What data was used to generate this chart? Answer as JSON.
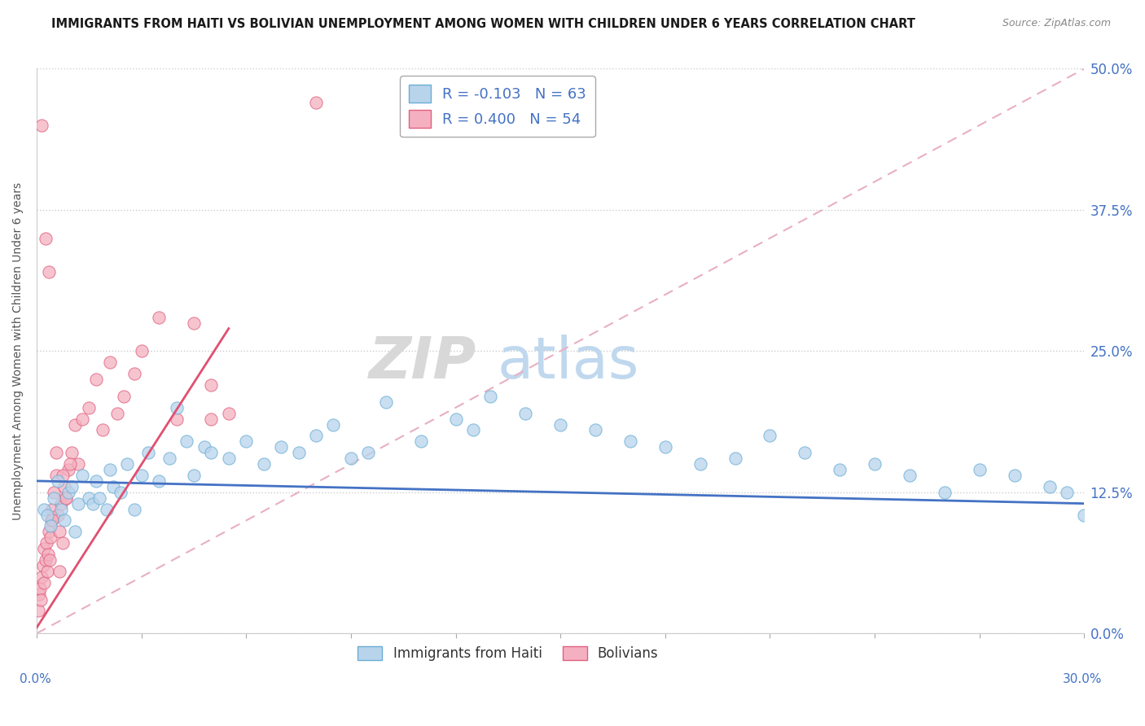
{
  "title": "IMMIGRANTS FROM HAITI VS BOLIVIAN UNEMPLOYMENT AMONG WOMEN WITH CHILDREN UNDER 6 YEARS CORRELATION CHART",
  "source": "Source: ZipAtlas.com",
  "ylabel": "Unemployment Among Women with Children Under 6 years",
  "ytick_vals": [
    0.0,
    12.5,
    25.0,
    37.5,
    50.0
  ],
  "xlim": [
    0.0,
    30.0
  ],
  "ylim": [
    0.0,
    50.0
  ],
  "legend_r1": "R = -0.103",
  "legend_n1": "N = 63",
  "legend_r2": "R = 0.400",
  "legend_n2": "N = 54",
  "color_haiti_fill": "#b8d4eb",
  "color_haiti_edge": "#6aaed6",
  "color_bolivia_fill": "#f4b0c0",
  "color_bolivia_edge": "#e06080",
  "color_line_haiti": "#4472c4",
  "color_line_bolivia": "#e05070",
  "color_refline": "#d4a0b0",
  "watermark_zip": "ZIP",
  "watermark_atlas": "atlas",
  "haiti_x": [
    0.2,
    0.3,
    0.4,
    0.5,
    0.6,
    0.7,
    0.8,
    0.9,
    1.0,
    1.1,
    1.2,
    1.3,
    1.5,
    1.6,
    1.7,
    1.8,
    2.0,
    2.1,
    2.2,
    2.4,
    2.6,
    2.8,
    3.0,
    3.2,
    3.5,
    3.8,
    4.0,
    4.3,
    4.5,
    4.8,
    5.0,
    5.5,
    6.0,
    6.5,
    7.0,
    7.5,
    8.0,
    8.5,
    9.0,
    9.5,
    10.0,
    11.0,
    12.0,
    12.5,
    13.0,
    14.0,
    15.0,
    16.0,
    17.0,
    18.0,
    19.0,
    20.0,
    21.0,
    22.0,
    23.0,
    24.0,
    25.0,
    26.0,
    27.0,
    28.0,
    29.0,
    29.5,
    30.0
  ],
  "haiti_y": [
    11.0,
    10.5,
    9.5,
    12.0,
    13.5,
    11.0,
    10.0,
    12.5,
    13.0,
    9.0,
    11.5,
    14.0,
    12.0,
    11.5,
    13.5,
    12.0,
    11.0,
    14.5,
    13.0,
    12.5,
    15.0,
    11.0,
    14.0,
    16.0,
    13.5,
    15.5,
    20.0,
    17.0,
    14.0,
    16.5,
    16.0,
    15.5,
    17.0,
    15.0,
    16.5,
    16.0,
    17.5,
    18.5,
    15.5,
    16.0,
    20.5,
    17.0,
    19.0,
    18.0,
    21.0,
    19.5,
    18.5,
    18.0,
    17.0,
    16.5,
    15.0,
    15.5,
    17.5,
    16.0,
    14.5,
    15.0,
    14.0,
    12.5,
    14.5,
    14.0,
    13.0,
    12.5,
    10.5
  ],
  "bolivia_x": [
    0.05,
    0.08,
    0.1,
    0.12,
    0.15,
    0.18,
    0.2,
    0.22,
    0.25,
    0.28,
    0.3,
    0.32,
    0.35,
    0.38,
    0.4,
    0.42,
    0.45,
    0.5,
    0.55,
    0.6,
    0.65,
    0.7,
    0.75,
    0.8,
    0.85,
    0.9,
    1.0,
    1.1,
    1.2,
    1.3,
    1.5,
    1.7,
    1.9,
    2.1,
    2.3,
    2.5,
    2.8,
    3.0,
    3.5,
    4.0,
    4.5,
    5.0,
    5.5,
    0.15,
    0.25,
    0.35,
    0.45,
    0.55,
    0.65,
    0.75,
    0.85,
    0.95,
    5.0,
    8.0
  ],
  "bolivia_y": [
    2.0,
    3.5,
    4.0,
    3.0,
    5.0,
    6.0,
    7.5,
    4.5,
    6.5,
    8.0,
    5.5,
    7.0,
    9.0,
    6.5,
    8.5,
    10.0,
    11.0,
    12.5,
    14.0,
    10.5,
    9.0,
    11.5,
    8.0,
    13.0,
    12.0,
    14.5,
    16.0,
    18.5,
    15.0,
    19.0,
    20.0,
    22.5,
    18.0,
    24.0,
    19.5,
    21.0,
    23.0,
    25.0,
    28.0,
    19.0,
    27.5,
    22.0,
    19.5,
    45.0,
    35.0,
    32.0,
    10.0,
    16.0,
    5.5,
    14.0,
    12.0,
    15.0,
    19.0,
    47.0
  ]
}
